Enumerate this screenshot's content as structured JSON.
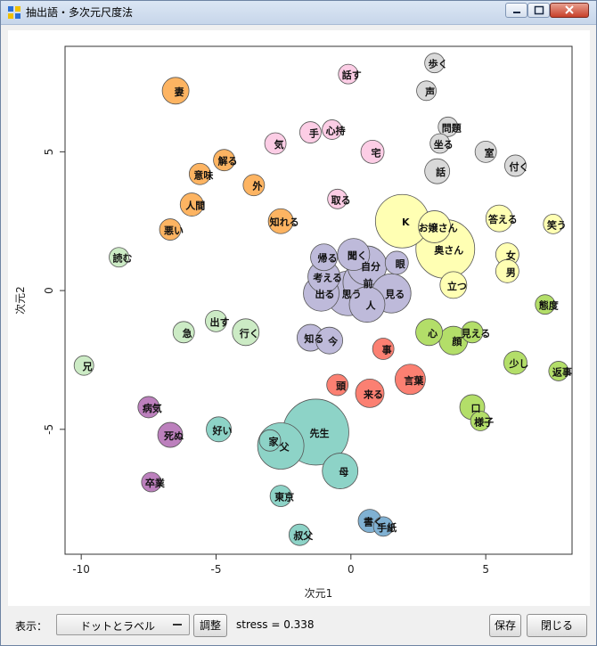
{
  "window": {
    "title": "抽出語・多次元尺度法"
  },
  "toolbar": {
    "display_label": "表示：",
    "display_value": "ドットとラベル",
    "adjust_label": "調整",
    "stress_text": "stress = 0.338",
    "save_label": "保存",
    "close_label": "閉じる"
  },
  "chart_data": {
    "type": "scatter",
    "xlabel": "次元1",
    "ylabel": "次元2",
    "xlim": [
      -10.6,
      8.2
    ],
    "ylim": [
      -9.5,
      8.8
    ],
    "xticks": [
      -10,
      -5,
      0,
      5
    ],
    "yticks": [
      -5,
      0,
      5
    ],
    "points": [
      {
        "label": "歩く",
        "x": 3.1,
        "y": 8.2,
        "r": 11,
        "color": "#d9d9d9"
      },
      {
        "label": "話す",
        "x": -0.1,
        "y": 7.8,
        "r": 11,
        "color": "#fccde5"
      },
      {
        "label": "妻",
        "x": -6.5,
        "y": 7.2,
        "r": 15,
        "color": "#fdb462"
      },
      {
        "label": "声",
        "x": 2.8,
        "y": 7.2,
        "r": 11,
        "color": "#d9d9d9"
      },
      {
        "label": "問題",
        "x": 3.6,
        "y": 5.9,
        "r": 11,
        "color": "#d9d9d9"
      },
      {
        "label": "手",
        "x": -1.5,
        "y": 5.7,
        "r": 12,
        "color": "#fccde5"
      },
      {
        "label": "心持",
        "x": -0.7,
        "y": 5.8,
        "r": 11,
        "color": "#fccde5"
      },
      {
        "label": "気",
        "x": -2.8,
        "y": 5.3,
        "r": 12,
        "color": "#fccde5"
      },
      {
        "label": "坐る",
        "x": 3.3,
        "y": 5.3,
        "r": 11,
        "color": "#d9d9d9"
      },
      {
        "label": "室",
        "x": 5.0,
        "y": 5.0,
        "r": 12,
        "color": "#d9d9d9"
      },
      {
        "label": "付く",
        "x": 6.1,
        "y": 4.5,
        "r": 12,
        "color": "#d9d9d9"
      },
      {
        "label": "宅",
        "x": 0.8,
        "y": 5.0,
        "r": 13,
        "color": "#fccde5"
      },
      {
        "label": "解る",
        "x": -4.7,
        "y": 4.7,
        "r": 12,
        "color": "#fdb462"
      },
      {
        "label": "意味",
        "x": -5.6,
        "y": 4.2,
        "r": 12,
        "color": "#fdb462"
      },
      {
        "label": "話",
        "x": 3.2,
        "y": 4.3,
        "r": 14,
        "color": "#d9d9d9"
      },
      {
        "label": "外",
        "x": -3.6,
        "y": 3.8,
        "r": 12,
        "color": "#fdb462"
      },
      {
        "label": "取る",
        "x": -0.5,
        "y": 3.3,
        "r": 11,
        "color": "#fccde5"
      },
      {
        "label": "人間",
        "x": -5.9,
        "y": 3.1,
        "r": 13,
        "color": "#fdb462"
      },
      {
        "label": "K",
        "x": 1.9,
        "y": 2.5,
        "r": 30,
        "color": "#ffffb3"
      },
      {
        "label": "お嬢さん",
        "x": 3.1,
        "y": 2.3,
        "r": 18,
        "color": "#ffffb3"
      },
      {
        "label": "奥さん",
        "x": 3.5,
        "y": 1.5,
        "r": 33,
        "color": "#ffffb3"
      },
      {
        "label": "答える",
        "x": 5.5,
        "y": 2.6,
        "r": 15,
        "color": "#ffffb3"
      },
      {
        "label": "笑う",
        "x": 7.5,
        "y": 2.4,
        "r": 11,
        "color": "#ffffb3"
      },
      {
        "label": "知れる",
        "x": -2.6,
        "y": 2.5,
        "r": 14,
        "color": "#fdb462"
      },
      {
        "label": "悪い",
        "x": -6.7,
        "y": 2.2,
        "r": 12,
        "color": "#fdb462"
      },
      {
        "label": "読む",
        "x": -8.6,
        "y": 1.2,
        "r": 11,
        "color": "#ccebc5"
      },
      {
        "label": "女",
        "x": 5.8,
        "y": 1.3,
        "r": 13,
        "color": "#ffffb3"
      },
      {
        "label": "男",
        "x": 5.8,
        "y": 0.7,
        "r": 13,
        "color": "#ffffb3"
      },
      {
        "label": "帰る",
        "x": -1.0,
        "y": 1.2,
        "r": 15,
        "color": "#bebada"
      },
      {
        "label": "聞く",
        "x": 0.1,
        "y": 1.3,
        "r": 18,
        "color": "#bebada"
      },
      {
        "label": "自分",
        "x": 0.6,
        "y": 0.9,
        "r": 22,
        "color": "#bebada"
      },
      {
        "label": "眼",
        "x": 1.7,
        "y": 1.0,
        "r": 13,
        "color": "#bebada"
      },
      {
        "label": "考える",
        "x": -1.0,
        "y": 0.5,
        "r": 18,
        "color": "#bebada"
      },
      {
        "label": "前",
        "x": 0.5,
        "y": 0.3,
        "r": 24,
        "color": "#bebada"
      },
      {
        "label": "立つ",
        "x": 3.8,
        "y": 0.2,
        "r": 15,
        "color": "#ffffb3"
      },
      {
        "label": "出る",
        "x": -1.1,
        "y": -0.1,
        "r": 20,
        "color": "#bebada"
      },
      {
        "label": "思う",
        "x": -0.1,
        "y": -0.1,
        "r": 25,
        "color": "#bebada"
      },
      {
        "label": "見る",
        "x": 1.5,
        "y": -0.1,
        "r": 22,
        "color": "#bebada"
      },
      {
        "label": "人",
        "x": 0.6,
        "y": -0.5,
        "r": 20,
        "color": "#bebada"
      },
      {
        "label": "態度",
        "x": 7.2,
        "y": -0.5,
        "r": 11,
        "color": "#b3de69"
      },
      {
        "label": "出す",
        "x": -5.0,
        "y": -1.1,
        "r": 12,
        "color": "#ccebc5"
      },
      {
        "label": "急",
        "x": -6.2,
        "y": -1.5,
        "r": 12,
        "color": "#ccebc5"
      },
      {
        "label": "行く",
        "x": -3.9,
        "y": -1.5,
        "r": 15,
        "color": "#ccebc5"
      },
      {
        "label": "知る",
        "x": -1.5,
        "y": -1.7,
        "r": 15,
        "color": "#bebada"
      },
      {
        "label": "今",
        "x": -0.8,
        "y": -1.8,
        "r": 15,
        "color": "#bebada"
      },
      {
        "label": "心",
        "x": 2.9,
        "y": -1.5,
        "r": 15,
        "color": "#b3de69"
      },
      {
        "label": "見える",
        "x": 4.5,
        "y": -1.5,
        "r": 12,
        "color": "#b3de69"
      },
      {
        "label": "顔",
        "x": 3.8,
        "y": -1.8,
        "r": 16,
        "color": "#b3de69"
      },
      {
        "label": "事",
        "x": 1.2,
        "y": -2.1,
        "r": 12,
        "color": "#fb8072"
      },
      {
        "label": "兄",
        "x": -9.9,
        "y": -2.7,
        "r": 11,
        "color": "#ccebc5"
      },
      {
        "label": "少し",
        "x": 6.1,
        "y": -2.6,
        "r": 13,
        "color": "#b3de69"
      },
      {
        "label": "返事",
        "x": 7.7,
        "y": -2.9,
        "r": 11,
        "color": "#b3de69"
      },
      {
        "label": "言葉",
        "x": 2.2,
        "y": -3.2,
        "r": 17,
        "color": "#fb8072"
      },
      {
        "label": "頭",
        "x": -0.5,
        "y": -3.4,
        "r": 12,
        "color": "#fb8072"
      },
      {
        "label": "来る",
        "x": 0.7,
        "y": -3.7,
        "r": 16,
        "color": "#fb8072"
      },
      {
        "label": "病気",
        "x": -7.5,
        "y": -4.2,
        "r": 12,
        "color": "#bc80bd"
      },
      {
        "label": "口",
        "x": 4.5,
        "y": -4.2,
        "r": 14,
        "color": "#b3de69"
      },
      {
        "label": "様子",
        "x": 4.8,
        "y": -4.7,
        "r": 11,
        "color": "#b3de69"
      },
      {
        "label": "好い",
        "x": -4.9,
        "y": -5.0,
        "r": 14,
        "color": "#8dd3c7"
      },
      {
        "label": "死ぬ",
        "x": -6.7,
        "y": -5.2,
        "r": 14,
        "color": "#bc80bd"
      },
      {
        "label": "家",
        "x": -3.0,
        "y": -5.4,
        "r": 12,
        "color": "#8dd3c7"
      },
      {
        "label": "父",
        "x": -2.6,
        "y": -5.6,
        "r": 26,
        "color": "#8dd3c7"
      },
      {
        "label": "先生",
        "x": -1.3,
        "y": -5.1,
        "r": 37,
        "color": "#8dd3c7"
      },
      {
        "label": "母",
        "x": -0.4,
        "y": -6.5,
        "r": 20,
        "color": "#8dd3c7"
      },
      {
        "label": "卒業",
        "x": -7.4,
        "y": -6.9,
        "r": 11,
        "color": "#bc80bd"
      },
      {
        "label": "東京",
        "x": -2.6,
        "y": -7.4,
        "r": 12,
        "color": "#8dd3c7"
      },
      {
        "label": "書く",
        "x": 0.7,
        "y": -8.3,
        "r": 13,
        "color": "#80b1d3"
      },
      {
        "label": "手紙",
        "x": 1.2,
        "y": -8.5,
        "r": 11,
        "color": "#80b1d3"
      },
      {
        "label": "叔父",
        "x": -1.9,
        "y": -8.8,
        "r": 12,
        "color": "#8dd3c7"
      }
    ]
  }
}
